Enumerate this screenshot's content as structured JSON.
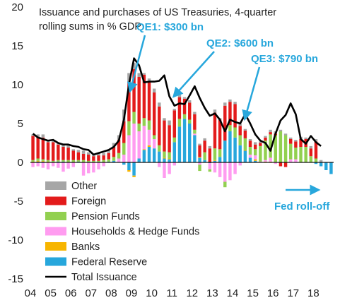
{
  "chart_data": {
    "type": "bar",
    "title_lines": [
      "Issuance and purchases  of US Treasuries, 4-quarter",
      "rolling sums in % GDP"
    ],
    "xlabel": "",
    "ylabel": "",
    "ylim": [
      -15,
      20
    ],
    "y_ticks": [
      "20",
      "15",
      "10",
      "5",
      "0",
      "-5",
      "-10",
      "-15"
    ],
    "x_ticks": [
      "04",
      "05",
      "06",
      "07",
      "08",
      "09",
      "10",
      "11",
      "12",
      "13",
      "14",
      "15",
      "16",
      "17",
      "18"
    ],
    "stacked": true,
    "series": [
      {
        "name": "Federal Reserve",
        "color": "#27a7dc",
        "values": [
          0,
          0.1,
          0.1,
          0,
          0,
          0.1,
          0.1,
          0,
          0,
          0.1,
          0,
          0,
          0,
          0,
          0,
          0.1,
          0.2,
          0,
          -0.3,
          -1.0,
          -1.7,
          0.5,
          1.6,
          2.0,
          1.8,
          1.4,
          0.5,
          0.4,
          2.6,
          4.6,
          5.6,
          5.0,
          3.5,
          0.6,
          0.3,
          -0.1,
          0.2,
          0.7,
          2.8,
          4.0,
          3.2,
          2.2,
          1.5,
          0.6,
          0.2,
          0,
          0,
          0,
          0,
          0,
          0,
          0,
          0,
          0,
          0,
          0,
          -0.2,
          -0.5,
          -1.0,
          -1.5
        ]
      },
      {
        "name": "Banks",
        "color": "#f7b500",
        "values": [
          0.1,
          0.1,
          0.1,
          0.1,
          0,
          0,
          0,
          0,
          0,
          0,
          0,
          0,
          0,
          0,
          0,
          0,
          0,
          0,
          0,
          -0.2,
          -0.2,
          0,
          0.1,
          0.2,
          0,
          0,
          0.1,
          0.1,
          0,
          0,
          0,
          0,
          0,
          0.1,
          0,
          0,
          0.1,
          0,
          0,
          0,
          0,
          0,
          0.1,
          0,
          0.2,
          0,
          0.1,
          0.1,
          0,
          0,
          0,
          0,
          0,
          0,
          0,
          0,
          0,
          0,
          0,
          0
        ]
      },
      {
        "name": "Households & Hedge Funds",
        "color": "#ff9cf0",
        "values": [
          -0.6,
          -0.5,
          -0.7,
          -0.9,
          -0.5,
          -0.7,
          -1.2,
          -0.8,
          -0.6,
          0,
          -1.7,
          -1.4,
          -1.3,
          -0.9,
          -0.5,
          0,
          0,
          0.5,
          1.0,
          3.5,
          5.0,
          3.5,
          3.0,
          2.0,
          1.2,
          -0.6,
          -2.0,
          -1.5,
          -0.4,
          0,
          0,
          0,
          0.2,
          -0.3,
          0,
          -0.8,
          -1.3,
          -1.9,
          -2.5,
          -2.3,
          -1.5,
          -0.4,
          0,
          0.4,
          0.5,
          0.1,
          0.2,
          0.5,
          -0.2,
          0,
          0,
          0.4,
          0.4,
          0,
          0,
          0,
          0,
          0,
          0,
          0
        ]
      },
      {
        "name": "Pension Funds",
        "color": "#92d050",
        "values": [
          0.2,
          0.3,
          0.2,
          0.2,
          0.2,
          0.2,
          0.2,
          0.3,
          0.3,
          0.2,
          0.3,
          0.2,
          0.2,
          0.2,
          0.3,
          0.3,
          0.5,
          0.7,
          1.5,
          1.8,
          1.5,
          1.0,
          1.0,
          1.2,
          0.5,
          0.8,
          0.8,
          0.8,
          0.6,
          1.0,
          0.6,
          0.5,
          0.5,
          -0.8,
          1.0,
          -0.3,
          1.5,
          1.0,
          -0.7,
          0.8,
          1.3,
          1.3,
          1.5,
          1.0,
          0.8,
          2.0,
          2.5,
          3.0,
          3.5,
          4.0,
          3.5,
          2.0,
          1.5,
          2.0,
          2.0,
          0.8,
          0.5,
          0,
          0,
          0
        ]
      },
      {
        "name": "Foreign",
        "color": "#e31b1b",
        "values": [
          3.1,
          2.8,
          2.8,
          2.3,
          2.4,
          2.0,
          1.7,
          1.6,
          1.2,
          1.0,
          0.8,
          0.8,
          0.6,
          0.7,
          0.6,
          0.8,
          1.3,
          1.7,
          2.8,
          5.0,
          5.5,
          6.0,
          5.6,
          5.0,
          5.5,
          5.0,
          4.0,
          3.5,
          3.5,
          2.8,
          2.0,
          2.2,
          2.0,
          1.5,
          1.5,
          1.8,
          4.6,
          3.8,
          4.5,
          3.0,
          3.0,
          1.2,
          1.0,
          0.8,
          0.6,
          0.4,
          0.4,
          0.3,
          0.2,
          -0.5,
          -0.6,
          0.6,
          0.8,
          1.0,
          1.0,
          1.0,
          2.2,
          0,
          0,
          0
        ]
      },
      {
        "name": "Other",
        "color": "#a6a6a6",
        "values": [
          0.2,
          0.3,
          0.4,
          0.3,
          0.3,
          0.2,
          0.3,
          0.3,
          0.2,
          0.3,
          0.4,
          0.3,
          0.2,
          0.3,
          0.3,
          0.4,
          0.5,
          0.6,
          1.5,
          1.2,
          0.8,
          0.5,
          0.2,
          0.4,
          0.5,
          0.5,
          0.3,
          0.6,
          0.2,
          0.3,
          0.2,
          0.3,
          0.3,
          0.2,
          0.3,
          0.3,
          0.4,
          0.2,
          0.4,
          0.3,
          0.3,
          0.3,
          0.2,
          0.2,
          0.3,
          0.2,
          0.2,
          0.3,
          0.3,
          0.2,
          0.2,
          0.2,
          0.2,
          0.3,
          0.2,
          0.3,
          0.3,
          0.3,
          0,
          0
        ]
      }
    ],
    "line": {
      "name": "Total Issuance",
      "color": "#000000",
      "values": [
        3.7,
        3.2,
        3.0,
        2.8,
        2.9,
        2.5,
        2.3,
        2.3,
        2.1,
        2.0,
        1.7,
        1.6,
        1.0,
        1.2,
        1.4,
        1.6,
        2.0,
        2.8,
        5.5,
        10.0,
        13.4,
        12.5,
        10.3,
        10.4,
        10.4,
        10.5,
        11.2,
        8.5,
        7.3,
        7.6,
        7.5,
        8.6,
        9.8,
        8.3,
        7.0,
        6.0,
        6.3,
        5.5,
        4.0,
        5.5,
        5.2,
        5.0,
        6.2,
        5.0,
        3.6,
        2.8,
        2.5,
        1.5,
        3.7,
        5.4,
        6.1,
        7.6,
        6.2,
        3.0,
        2.4,
        3.4,
        2.6,
        2.1,
        null,
        null
      ]
    },
    "legend": [
      {
        "label": "Other",
        "color": "#a6a6a6",
        "kind": "box"
      },
      {
        "label": "Foreign",
        "color": "#e31b1b",
        "kind": "box"
      },
      {
        "label": "Pension Funds",
        "color": "#92d050",
        "kind": "box"
      },
      {
        "label": "Households & Hedge Funds",
        "color": "#ff9cf0",
        "kind": "box"
      },
      {
        "label": "Banks",
        "color": "#f7b500",
        "kind": "box"
      },
      {
        "label": "Federal Reserve",
        "color": "#27a7dc",
        "kind": "box"
      },
      {
        "label": "Total Issuance",
        "color": "#000000",
        "kind": "line"
      }
    ],
    "annotations": [
      {
        "text": "QE1: $300 bn",
        "color": "#27a7dc",
        "point": [
          19.4,
          9.6
        ]
      },
      {
        "text": "QE2: $600 bn",
        "color": "#27a7dc",
        "point": [
          28.3,
          8.8
        ]
      },
      {
        "text": "QE3: $790 bn",
        "color": "#27a7dc",
        "point": [
          42.1,
          6.0
        ]
      },
      {
        "text": "Fed roll-off",
        "color": "#27a7dc",
        "point": [
          56,
          -3.6
        ]
      }
    ]
  }
}
